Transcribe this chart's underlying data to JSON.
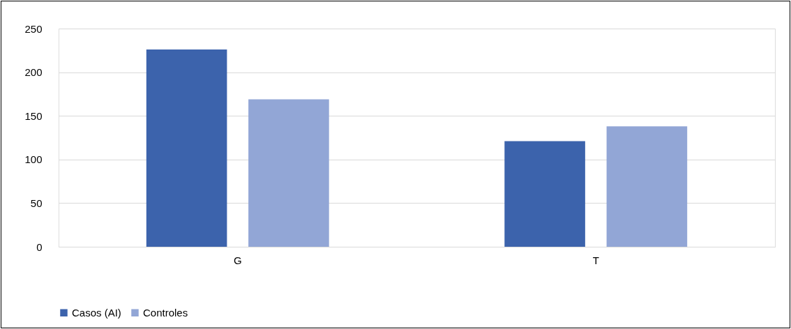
{
  "chart_data": {
    "type": "bar",
    "categories": [
      "G",
      "T"
    ],
    "series": [
      {
        "name": "Casos (AI)",
        "color": "#3c63ac",
        "values": [
          226,
          121
        ]
      },
      {
        "name": "Controles",
        "color": "#92a6d6",
        "values": [
          169,
          138
        ]
      }
    ],
    "ylim": [
      0,
      250
    ],
    "yticks": [
      0,
      50,
      100,
      150,
      200,
      250
    ],
    "grid": "y",
    "legend": "bottom"
  }
}
